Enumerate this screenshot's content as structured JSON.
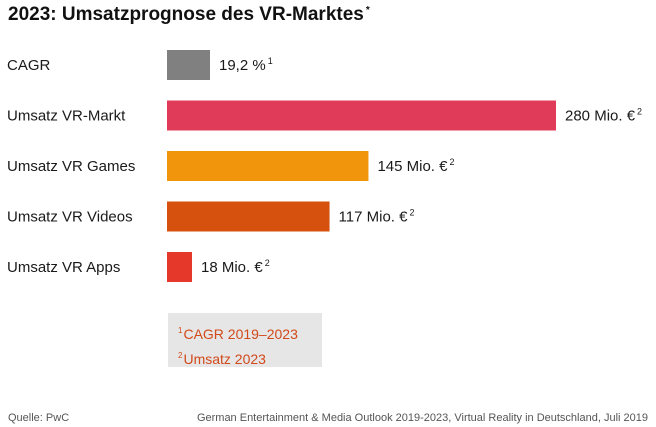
{
  "title": "2023: Umsatzprognose des VR-Marktes",
  "title_mark": "*",
  "chart_data": {
    "type": "bar",
    "orientation": "horizontal",
    "categories": [
      "CAGR",
      "Umsatz VR-Markt",
      "Umsatz VR Games",
      "Umsatz VR Videos",
      "Umsatz VR Apps"
    ],
    "values": [
      19.2,
      280,
      145,
      117,
      18
    ],
    "units": [
      "%",
      "Mio. €",
      "Mio. €",
      "Mio. €",
      "Mio. €"
    ],
    "value_labels": [
      "19,2 %",
      "280 Mio. €",
      "145 Mio. €",
      "117 Mio. €",
      "18 Mio. €"
    ],
    "footnotes": [
      "1",
      "2",
      "2",
      "2",
      "2"
    ],
    "colors": [
      "#808080",
      "#e03c5a",
      "#f0950c",
      "#d6500e",
      "#e5382a"
    ],
    "xlim": [
      0,
      280
    ]
  },
  "legend": {
    "note1_marker": "1",
    "note1_text": "CAGR 2019–2023",
    "note2_marker": "2",
    "note2_text": "Umsatz 2023"
  },
  "footer": {
    "source": "Quelle: PwC",
    "publication": "German Entertainment & Media Outlook 2019-2023, Virtual Reality in Deutschland, Juli 2019"
  }
}
